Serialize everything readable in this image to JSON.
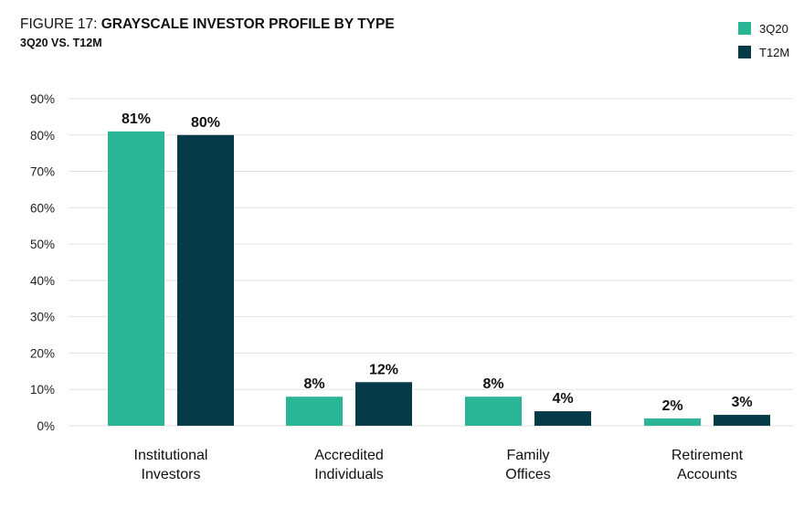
{
  "header": {
    "title_prefix": "FIGURE 17: ",
    "title_main": "GRAYSCALE INVESTOR PROFILE BY TYPE",
    "subtitle": "3Q20 VS. T12M"
  },
  "colors": {
    "series_3q20": "#2ab596",
    "series_t12m": "#063a48",
    "grid": "#e2e2e2"
  },
  "chart_data": {
    "type": "bar",
    "title": "GRAYSCALE INVESTOR PROFILE BY TYPE",
    "subtitle": "3Q20 VS. T12M",
    "categories": [
      [
        "Institutional",
        "Investors"
      ],
      [
        "Accredited",
        "Individuals"
      ],
      [
        "Family",
        "Offices"
      ],
      [
        "Retirement",
        "Accounts"
      ]
    ],
    "series": [
      {
        "name": "3Q20",
        "values": [
          81,
          8,
          8,
          2
        ],
        "labels": [
          "81%",
          "8%",
          "8%",
          "2%"
        ]
      },
      {
        "name": "T12M",
        "values": [
          80,
          12,
          4,
          3
        ],
        "labels": [
          "80%",
          "12%",
          "4%",
          "3%"
        ]
      }
    ],
    "ylim": [
      0,
      90
    ],
    "yticks": [
      "0%",
      "10%",
      "20%",
      "30%",
      "40%",
      "50%",
      "60%",
      "70%",
      "80%",
      "90%"
    ],
    "grid": true,
    "legend": "top-right"
  }
}
